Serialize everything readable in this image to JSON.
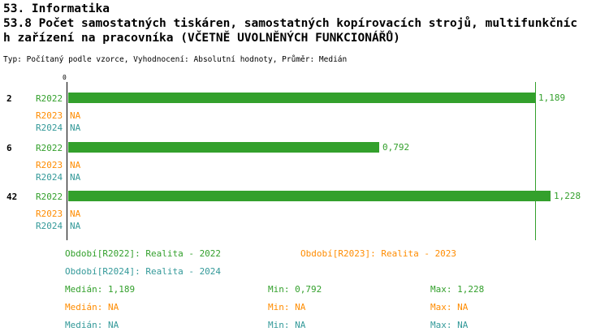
{
  "header": {
    "title_line1": "53. Informatika",
    "title_line2": "53.8 Počet samostatných tiskáren, samostatných kopírovacích strojů, multifunkčníc",
    "title_line3": "h zařízení na pracovníka (VČETNĚ UVOLNĚNÝCH FUNKCIONÁŘŮ)",
    "meta_line": "Typ: Počítaný podle vzorce, Vyhodnocení: Absolutní hodnoty, Průměr: Medián"
  },
  "colors": {
    "r2022": "#33A02C",
    "r2023": "#FF8C00",
    "r2024": "#339999",
    "axis": "#000000",
    "background": "#FFFFFF"
  },
  "chart_data": {
    "type": "bar",
    "orientation": "horizontal",
    "title": "53.8 Počet samostatných tiskáren, samostatných kopírovacích strojů, multifunkčních zařízení na pracovníka (VČETNĚ UVOLNĚNÝCH FUNKCIONÁŘŮ)",
    "xlabel": "",
    "ylabel": "",
    "xlim": [
      0,
      1.24
    ],
    "x_axis_zero_label": "0",
    "grid": false,
    "median_line_value": 1.189,
    "series_names": [
      "R2022",
      "R2023",
      "R2024"
    ],
    "groups": [
      {
        "category": "2",
        "bars": [
          {
            "series": "R2022",
            "value": 1.189,
            "label": "1,189"
          },
          {
            "series": "R2023",
            "value": null,
            "label": "NA"
          },
          {
            "series": "R2024",
            "value": null,
            "label": "NA"
          }
        ]
      },
      {
        "category": "6",
        "bars": [
          {
            "series": "R2022",
            "value": 0.792,
            "label": "0,792"
          },
          {
            "series": "R2023",
            "value": null,
            "label": "NA"
          },
          {
            "series": "R2024",
            "value": null,
            "label": "NA"
          }
        ]
      },
      {
        "category": "42",
        "bars": [
          {
            "series": "R2022",
            "value": 1.228,
            "label": "1,228"
          },
          {
            "series": "R2023",
            "value": null,
            "label": "NA"
          },
          {
            "series": "R2024",
            "value": null,
            "label": "NA"
          }
        ]
      }
    ]
  },
  "legend": {
    "periods": [
      {
        "text": "Období[R2022]: Realita - 2022"
      },
      {
        "text": "Období[R2023]: Realita - 2023"
      },
      {
        "text": "Období[R2024]: Realita - 2024"
      }
    ],
    "stats": [
      {
        "median": "Medián: 1,189",
        "min": "Min: 0,792",
        "max": "Max: 1,228"
      },
      {
        "median": "Medián: NA",
        "min": "Min: NA",
        "max": "Max: NA"
      },
      {
        "median": "Medián: NA",
        "min": "Min: NA",
        "max": "Max: NA"
      }
    ]
  }
}
